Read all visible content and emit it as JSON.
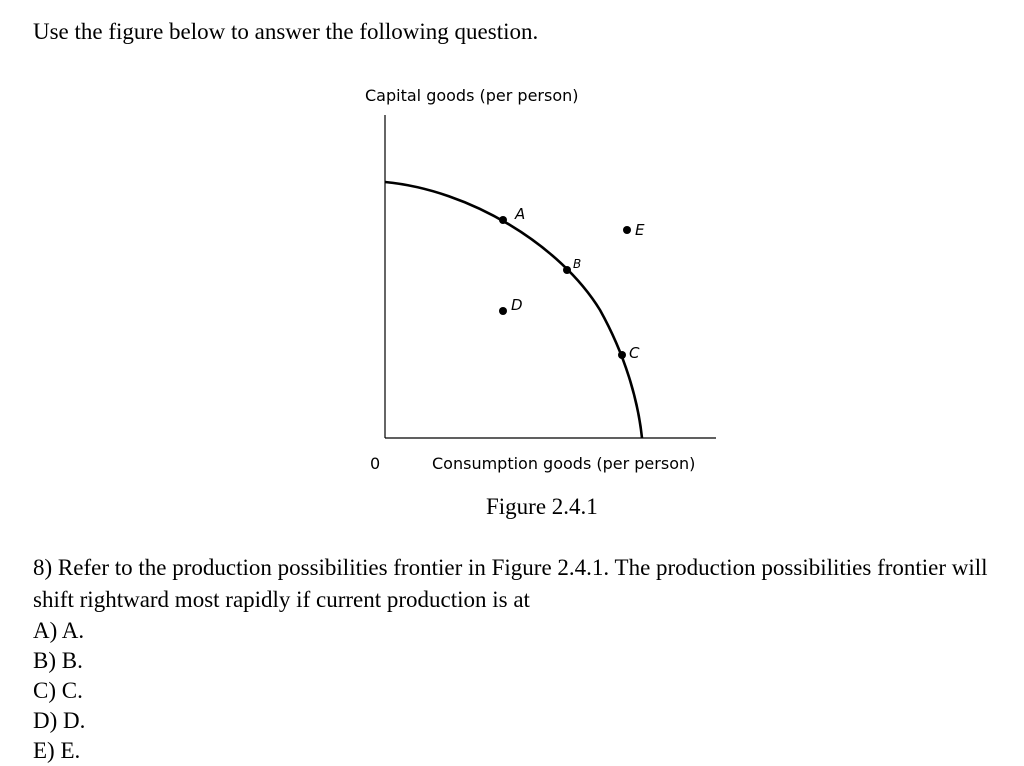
{
  "intro": "Use the figure below to answer the following question.",
  "figure": {
    "y_axis_label": "Capital goods (per person)",
    "x_axis_label": "Consumption goods (per person)",
    "origin_label": "0",
    "points": [
      "A",
      "B",
      "C",
      "D",
      "E"
    ],
    "caption": "Figure 2.4.1"
  },
  "question": "8) Refer to the production possibilities frontier in Figure 2.4.1. The production possibilities frontier will shift rightward most rapidly if current production is at",
  "options": [
    "A) A.",
    "B) B.",
    "C) C.",
    "D) D.",
    "E) E."
  ]
}
